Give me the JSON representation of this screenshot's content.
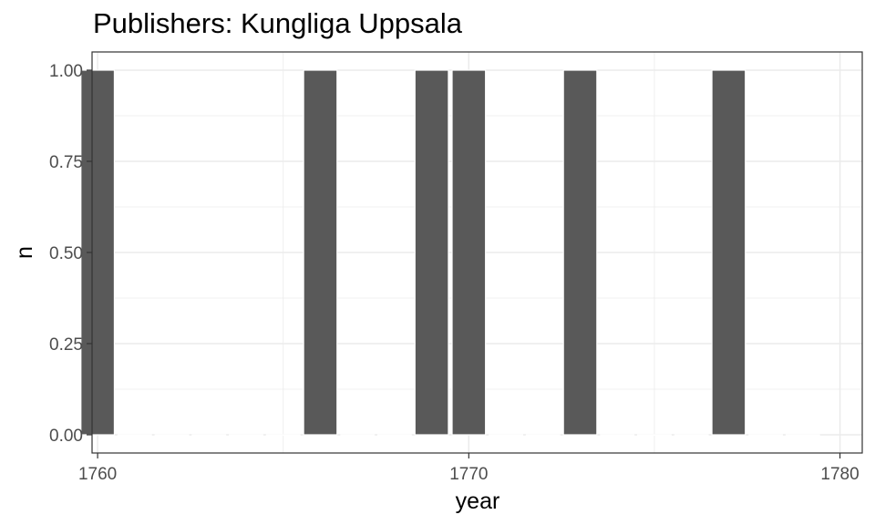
{
  "chart_data": {
    "type": "bar",
    "title": "Publishers: Kungliga Uppsala",
    "xlabel": "year",
    "ylabel": "n",
    "x": [
      1760,
      1761,
      1762,
      1763,
      1764,
      1765,
      1766,
      1767,
      1768,
      1769,
      1770,
      1771,
      1772,
      1773,
      1774,
      1775,
      1776,
      1777,
      1778,
      1779
    ],
    "values": [
      1,
      0,
      0,
      0,
      0,
      0,
      1,
      0,
      0,
      1,
      1,
      0,
      0,
      1,
      0,
      0,
      0,
      1,
      0,
      0
    ],
    "xlim": [
      1759.85,
      1780.6
    ],
    "ylim": [
      -0.05,
      1.05
    ],
    "x_ticks": [
      1760,
      1770,
      1780
    ],
    "y_ticks": [
      0,
      0.25,
      0.5,
      0.75,
      1
    ],
    "x_tick_labels": [
      "1760",
      "1770",
      "1780"
    ],
    "y_tick_labels": [
      "0.00",
      "0.25",
      "0.50",
      "0.75",
      "1.00"
    ],
    "grid": true,
    "theme": "bw",
    "colors": {
      "bar": "#595959",
      "grid": "#ebebeb",
      "panel_border": "#333333",
      "tick_text": "#4d4d4d"
    }
  }
}
